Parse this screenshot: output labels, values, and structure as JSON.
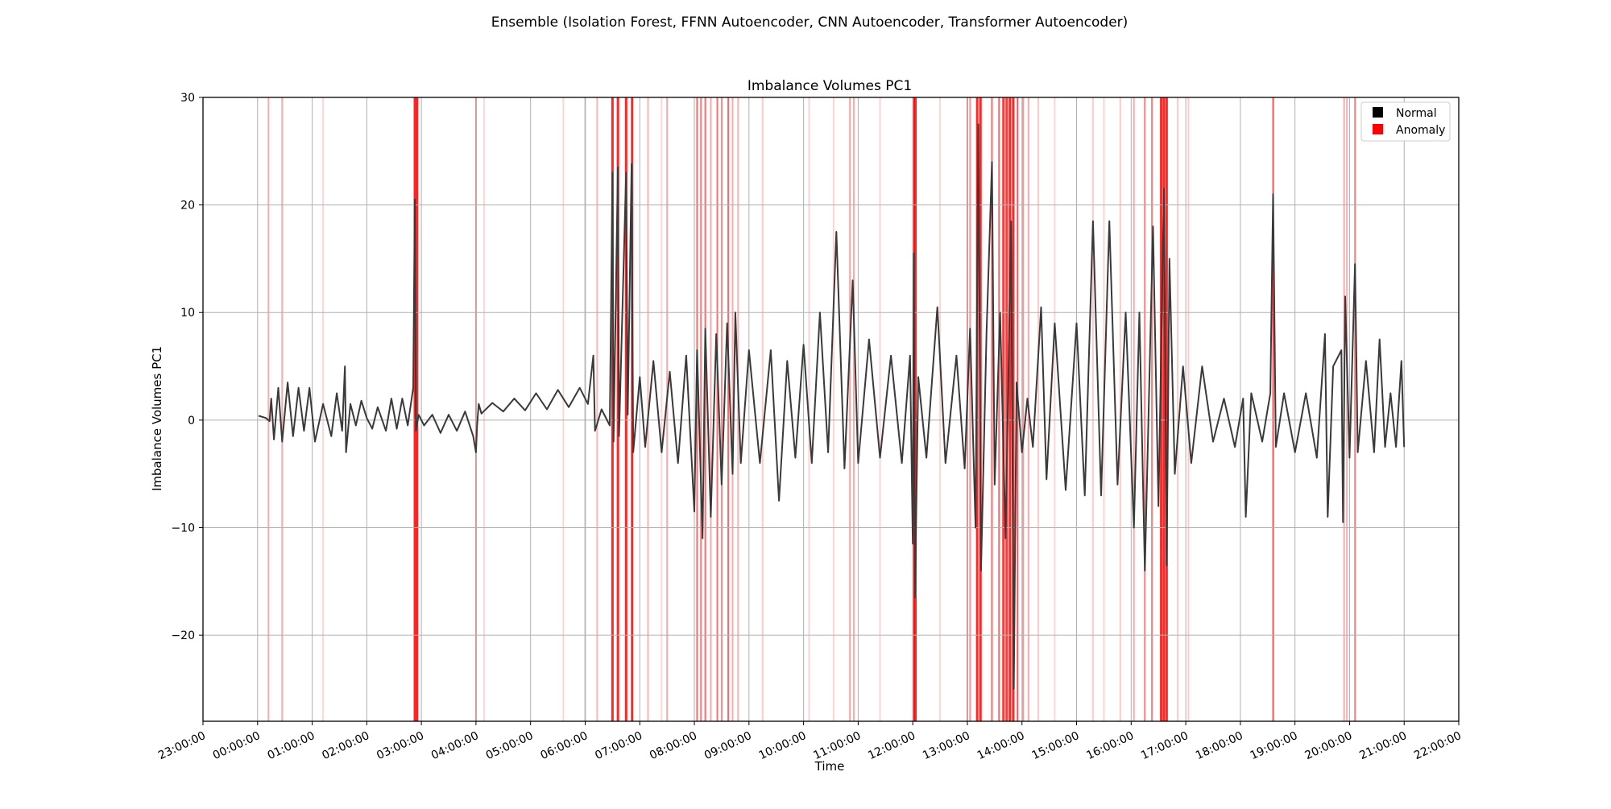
{
  "figure": {
    "suptitle": "Ensemble (Isolation Forest, FFNN Autoencoder, CNN Autoencoder, Transformer Autoencoder)"
  },
  "chart_data": {
    "type": "line",
    "title": "Imbalance Volumes PC1",
    "xlabel": "Time",
    "ylabel": "Imbalance Volumes PC1",
    "xlim_hours": [
      -1.0,
      22.0
    ],
    "ylim": [
      -28,
      30
    ],
    "x_ticks": [
      {
        "h": -1,
        "label": "23:00:00"
      },
      {
        "h": 0,
        "label": "00:00:00"
      },
      {
        "h": 1,
        "label": "01:00:00"
      },
      {
        "h": 2,
        "label": "02:00:00"
      },
      {
        "h": 3,
        "label": "03:00:00"
      },
      {
        "h": 4,
        "label": "04:00:00"
      },
      {
        "h": 5,
        "label": "05:00:00"
      },
      {
        "h": 6,
        "label": "06:00:00"
      },
      {
        "h": 7,
        "label": "07:00:00"
      },
      {
        "h": 8,
        "label": "08:00:00"
      },
      {
        "h": 9,
        "label": "09:00:00"
      },
      {
        "h": 10,
        "label": "10:00:00"
      },
      {
        "h": 11,
        "label": "11:00:00"
      },
      {
        "h": 12,
        "label": "12:00:00"
      },
      {
        "h": 13,
        "label": "13:00:00"
      },
      {
        "h": 14,
        "label": "14:00:00"
      },
      {
        "h": 15,
        "label": "15:00:00"
      },
      {
        "h": 16,
        "label": "16:00:00"
      },
      {
        "h": 17,
        "label": "17:00:00"
      },
      {
        "h": 18,
        "label": "18:00:00"
      },
      {
        "h": 19,
        "label": "19:00:00"
      },
      {
        "h": 20,
        "label": "20:00:00"
      },
      {
        "h": 21,
        "label": "21:00:00"
      },
      {
        "h": 22,
        "label": "22:00:00"
      }
    ],
    "y_ticks": [
      {
        "v": 30,
        "label": "30"
      },
      {
        "v": 20,
        "label": "20"
      },
      {
        "v": 10,
        "label": "10"
      },
      {
        "v": 0,
        "label": "0"
      },
      {
        "v": -10,
        "label": "−10"
      },
      {
        "v": -20,
        "label": "−20"
      }
    ],
    "grid": true,
    "legend": {
      "location": "top-right",
      "entries": [
        {
          "label": "Normal",
          "color": "#000000"
        },
        {
          "label": "Anomaly",
          "color": "#ff0000"
        }
      ]
    },
    "series_style": {
      "line_color": "#3a3a3a",
      "anomaly_color": "#ff0000"
    },
    "series": [
      {
        "points": [
          [
            0.02,
            0.4
          ],
          [
            0.15,
            0.2
          ],
          [
            0.22,
            -0.1
          ],
          [
            0.25,
            2.0
          ],
          [
            0.3,
            -1.8
          ],
          [
            0.38,
            3.0
          ],
          [
            0.45,
            -2.0
          ],
          [
            0.55,
            3.5
          ],
          [
            0.65,
            -1.5
          ],
          [
            0.75,
            3.0
          ],
          [
            0.85,
            -1.0
          ],
          [
            0.95,
            3.0
          ],
          [
            1.05,
            -2.0
          ],
          [
            1.2,
            1.5
          ],
          [
            1.35,
            -1.5
          ],
          [
            1.45,
            2.5
          ],
          [
            1.55,
            -1.0
          ],
          [
            1.6,
            5.0
          ],
          [
            1.62,
            -3.0
          ],
          [
            1.7,
            1.5
          ],
          [
            1.8,
            -0.5
          ],
          [
            1.9,
            1.8
          ],
          [
            2.0,
            0.2
          ],
          [
            2.1,
            -0.8
          ],
          [
            2.2,
            1.2
          ],
          [
            2.35,
            -1.0
          ],
          [
            2.45,
            2.0
          ],
          [
            2.55,
            -0.8
          ],
          [
            2.65,
            2.0
          ],
          [
            2.75,
            -0.5
          ],
          [
            2.85,
            3.0
          ],
          [
            2.88,
            20.5
          ],
          [
            2.9,
            -1.0
          ],
          [
            2.95,
            0.5
          ],
          [
            3.05,
            -0.5
          ],
          [
            3.2,
            0.5
          ],
          [
            3.35,
            -1.2
          ],
          [
            3.5,
            0.5
          ],
          [
            3.65,
            -1.0
          ],
          [
            3.8,
            0.8
          ],
          [
            3.95,
            -1.5
          ],
          [
            4.0,
            -3.0
          ],
          [
            4.02,
            -0.5
          ],
          [
            4.05,
            1.5
          ],
          [
            4.1,
            0.6
          ],
          [
            4.3,
            1.6
          ],
          [
            4.5,
            0.8
          ],
          [
            4.7,
            2.0
          ],
          [
            4.9,
            0.9
          ],
          [
            5.1,
            2.5
          ],
          [
            5.3,
            1.0
          ],
          [
            5.5,
            2.8
          ],
          [
            5.7,
            1.2
          ],
          [
            5.9,
            3.0
          ],
          [
            6.05,
            1.5
          ],
          [
            6.15,
            6.0
          ],
          [
            6.18,
            -1.0
          ],
          [
            6.3,
            1.0
          ],
          [
            6.45,
            -0.5
          ],
          [
            6.5,
            23.0
          ],
          [
            6.52,
            -2.0
          ],
          [
            6.6,
            23.5
          ],
          [
            6.62,
            -1.5
          ],
          [
            6.75,
            23.0
          ],
          [
            6.78,
            0.5
          ],
          [
            6.85,
            23.8
          ],
          [
            6.88,
            -3.0
          ],
          [
            7.0,
            4.0
          ],
          [
            7.1,
            -2.5
          ],
          [
            7.25,
            5.5
          ],
          [
            7.4,
            -3.0
          ],
          [
            7.55,
            4.5
          ],
          [
            7.7,
            -4.0
          ],
          [
            7.85,
            6.0
          ],
          [
            8.0,
            -8.5
          ],
          [
            8.05,
            6.5
          ],
          [
            8.15,
            -11.0
          ],
          [
            8.2,
            8.5
          ],
          [
            8.3,
            -9.0
          ],
          [
            8.4,
            8.0
          ],
          [
            8.5,
            -6.0
          ],
          [
            8.6,
            9.0
          ],
          [
            8.7,
            -5.0
          ],
          [
            8.75,
            10.0
          ],
          [
            8.85,
            -4.0
          ],
          [
            9.0,
            6.5
          ],
          [
            9.2,
            -4.0
          ],
          [
            9.4,
            6.5
          ],
          [
            9.55,
            -7.5
          ],
          [
            9.7,
            5.5
          ],
          [
            9.85,
            -3.5
          ],
          [
            10.0,
            7.0
          ],
          [
            10.15,
            -4.0
          ],
          [
            10.3,
            10.0
          ],
          [
            10.45,
            -3.0
          ],
          [
            10.6,
            17.5
          ],
          [
            10.75,
            -4.5
          ],
          [
            10.9,
            13.0
          ],
          [
            11.0,
            -4.0
          ],
          [
            11.2,
            7.5
          ],
          [
            11.4,
            -3.5
          ],
          [
            11.6,
            6.0
          ],
          [
            11.8,
            -4.0
          ],
          [
            11.95,
            6.0
          ],
          [
            12.0,
            -11.5
          ],
          [
            12.02,
            15.5
          ],
          [
            12.04,
            -16.5
          ],
          [
            12.1,
            4.0
          ],
          [
            12.25,
            -3.5
          ],
          [
            12.45,
            10.5
          ],
          [
            12.6,
            -4.0
          ],
          [
            12.8,
            6.0
          ],
          [
            12.95,
            -4.5
          ],
          [
            13.05,
            8.5
          ],
          [
            13.15,
            -10.0
          ],
          [
            13.2,
            27.5
          ],
          [
            13.25,
            -14.0
          ],
          [
            13.35,
            8.0
          ],
          [
            13.45,
            24.0
          ],
          [
            13.5,
            -6.0
          ],
          [
            13.6,
            10.0
          ],
          [
            13.7,
            -11.0
          ],
          [
            13.8,
            18.5
          ],
          [
            13.85,
            -25.0
          ],
          [
            13.9,
            3.5
          ],
          [
            14.0,
            -3.0
          ],
          [
            14.1,
            2.0
          ],
          [
            14.2,
            -2.5
          ],
          [
            14.35,
            10.5
          ],
          [
            14.45,
            -5.5
          ],
          [
            14.6,
            9.0
          ],
          [
            14.8,
            -6.5
          ],
          [
            15.0,
            9.0
          ],
          [
            15.15,
            -7.0
          ],
          [
            15.3,
            18.5
          ],
          [
            15.45,
            -7.0
          ],
          [
            15.6,
            18.5
          ],
          [
            15.75,
            -6.0
          ],
          [
            15.9,
            10.0
          ],
          [
            16.05,
            -10.0
          ],
          [
            16.15,
            10.0
          ],
          [
            16.25,
            -14.0
          ],
          [
            16.4,
            18.0
          ],
          [
            16.5,
            -8.0
          ],
          [
            16.6,
            21.5
          ],
          [
            16.65,
            -13.5
          ],
          [
            16.7,
            15.0
          ],
          [
            16.8,
            -5.0
          ],
          [
            16.95,
            5.0
          ],
          [
            17.1,
            -4.0
          ],
          [
            17.3,
            5.0
          ],
          [
            17.5,
            -2.0
          ],
          [
            17.7,
            2.0
          ],
          [
            17.9,
            -2.5
          ],
          [
            18.05,
            2.0
          ],
          [
            18.1,
            -9.0
          ],
          [
            18.2,
            2.5
          ],
          [
            18.4,
            -2.0
          ],
          [
            18.55,
            2.5
          ],
          [
            18.6,
            21.0
          ],
          [
            18.65,
            -2.5
          ],
          [
            18.8,
            2.5
          ],
          [
            19.0,
            -3.0
          ],
          [
            19.2,
            2.5
          ],
          [
            19.4,
            -3.5
          ],
          [
            19.55,
            8.0
          ],
          [
            19.6,
            -9.0
          ],
          [
            19.7,
            5.0
          ],
          [
            19.85,
            6.5
          ],
          [
            19.88,
            -9.5
          ],
          [
            19.92,
            11.5
          ],
          [
            20.0,
            -3.5
          ],
          [
            20.1,
            14.5
          ],
          [
            20.15,
            -3.0
          ],
          [
            20.3,
            5.5
          ],
          [
            20.45,
            -3.0
          ],
          [
            20.55,
            7.5
          ],
          [
            20.65,
            -2.5
          ],
          [
            20.75,
            2.5
          ],
          [
            20.85,
            -2.5
          ],
          [
            20.95,
            5.5
          ],
          [
            21.0,
            -2.5
          ]
        ]
      }
    ],
    "anomaly_bands_hours": [
      [
        0.2,
        0.4
      ],
      [
        0.45,
        0.4
      ],
      [
        1.2,
        0.2
      ],
      [
        2.88,
        1.0
      ],
      [
        2.92,
        1.0
      ],
      [
        4.0,
        0.6
      ],
      [
        4.15,
        0.2
      ],
      [
        5.6,
        0.2
      ],
      [
        6.0,
        0.35
      ],
      [
        6.22,
        0.35
      ],
      [
        6.5,
        1.0
      ],
      [
        6.6,
        1.0
      ],
      [
        6.75,
        1.0
      ],
      [
        6.86,
        1.0
      ],
      [
        7.15,
        0.35
      ],
      [
        7.4,
        0.2
      ],
      [
        7.5,
        0.4
      ],
      [
        8.05,
        0.7
      ],
      [
        8.12,
        0.6
      ],
      [
        8.2,
        0.7
      ],
      [
        8.3,
        0.4
      ],
      [
        8.42,
        0.65
      ],
      [
        8.5,
        0.55
      ],
      [
        8.62,
        0.7
      ],
      [
        8.7,
        0.4
      ],
      [
        8.8,
        0.35
      ],
      [
        9.25,
        0.25
      ],
      [
        10.1,
        0.2
      ],
      [
        10.55,
        0.2
      ],
      [
        10.85,
        0.45
      ],
      [
        10.92,
        0.4
      ],
      [
        11.4,
        0.2
      ],
      [
        12.02,
        1.0
      ],
      [
        12.05,
        1.0
      ],
      [
        12.5,
        0.2
      ],
      [
        13.0,
        0.6
      ],
      [
        13.05,
        0.5
      ],
      [
        13.18,
        1.0
      ],
      [
        13.24,
        1.0
      ],
      [
        13.45,
        0.7
      ],
      [
        13.58,
        0.7
      ],
      [
        13.66,
        0.9
      ],
      [
        13.72,
        0.9
      ],
      [
        13.78,
        1.0
      ],
      [
        13.84,
        1.0
      ],
      [
        13.92,
        0.8
      ],
      [
        14.02,
        0.5
      ],
      [
        14.12,
        0.4
      ],
      [
        14.3,
        0.25
      ],
      [
        14.6,
        0.2
      ],
      [
        15.3,
        0.25
      ],
      [
        15.5,
        0.2
      ],
      [
        15.8,
        0.25
      ],
      [
        16.05,
        0.4
      ],
      [
        16.25,
        0.6
      ],
      [
        16.38,
        0.6
      ],
      [
        16.55,
        1.0
      ],
      [
        16.6,
        1.0
      ],
      [
        16.65,
        1.0
      ],
      [
        16.85,
        0.25
      ],
      [
        17.05,
        0.25
      ],
      [
        18.6,
        0.8
      ],
      [
        19.9,
        0.4
      ],
      [
        19.95,
        0.35
      ],
      [
        20.1,
        0.6
      ]
    ]
  }
}
